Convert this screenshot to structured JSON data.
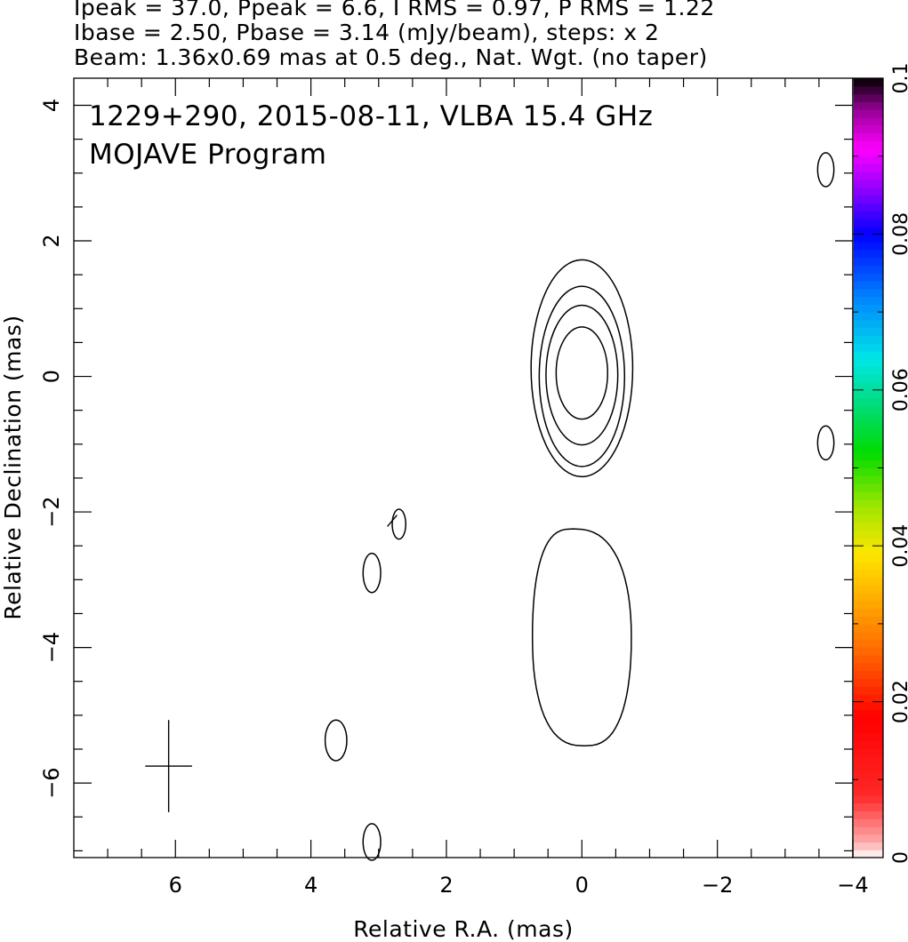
{
  "header": {
    "line1": "Ipeak = 37.0, Ppeak = 6.6, I RMS = 0.97, P RMS = 1.22",
    "line2": "Ibase = 2.50, Pbase = 3.14 (mJy/beam), steps: x 2",
    "line3": "Beam: 1.36x0.69 mas at 0.5 deg., Nat. Wgt. (no taper)"
  },
  "chart_data": {
    "type": "contour",
    "title": "1229+290, 2015-08-11, VLBA 15.4 GHz",
    "subtitle": "MOJAVE Program",
    "xlabel": "Relative R.A. (mas)",
    "ylabel": "Relative Declination (mas)",
    "xlim": [
      7.5,
      -4.0
    ],
    "ylim": [
      -7.1,
      4.4
    ],
    "x_ticks": [
      6,
      4,
      2,
      0,
      -2,
      -4
    ],
    "y_ticks": [
      4,
      2,
      0,
      -2,
      -4,
      -6
    ],
    "colorbar": {
      "range": [
        0,
        0.1
      ],
      "ticks": [
        0,
        0.02,
        0.04,
        0.06,
        0.08,
        0.1
      ],
      "tick_labels": [
        "0",
        "0.02",
        "0.04",
        "0.06",
        "0.08",
        "0.1"
      ]
    },
    "core_contours": [
      {
        "x0": 0.0,
        "y0": 0.05,
        "rx": 0.38,
        "ry": 0.68
      },
      {
        "x0": 0.0,
        "y0": 0.02,
        "rx": 0.53,
        "ry": 1.03
      },
      {
        "x0": 0.0,
        "y0": 0.0,
        "rx": 0.63,
        "ry": 1.33
      },
      {
        "x0": 0.0,
        "y0": 0.12,
        "rx": 0.75,
        "ry": 1.6
      }
    ],
    "jet_contour": {
      "x0": 0.0,
      "y0": -3.85,
      "rx": 0.73,
      "ry": 1.6
    },
    "small_blobs": [
      {
        "x0": -3.6,
        "y0": 3.05,
        "rx": 0.12,
        "ry": 0.25
      },
      {
        "x0": -3.6,
        "y0": -0.98,
        "rx": 0.12,
        "ry": 0.25
      },
      {
        "x0": 2.7,
        "y0": -2.18,
        "rx": 0.1,
        "ry": 0.22
      },
      {
        "x0": 3.1,
        "y0": -2.9,
        "rx": 0.13,
        "ry": 0.29
      },
      {
        "x0": 3.63,
        "y0": -5.37,
        "rx": 0.16,
        "ry": 0.3
      },
      {
        "x0": 3.1,
        "y0": -6.87,
        "rx": 0.13,
        "ry": 0.27
      }
    ],
    "pol_vectors": [
      {
        "x0": 2.8,
        "y0": -2.13,
        "length": 0.22,
        "angle_deg": 50
      }
    ],
    "beam_marker": {
      "x0": 6.1,
      "y0": -5.75,
      "major": 1.36,
      "minor": 0.69
    }
  }
}
